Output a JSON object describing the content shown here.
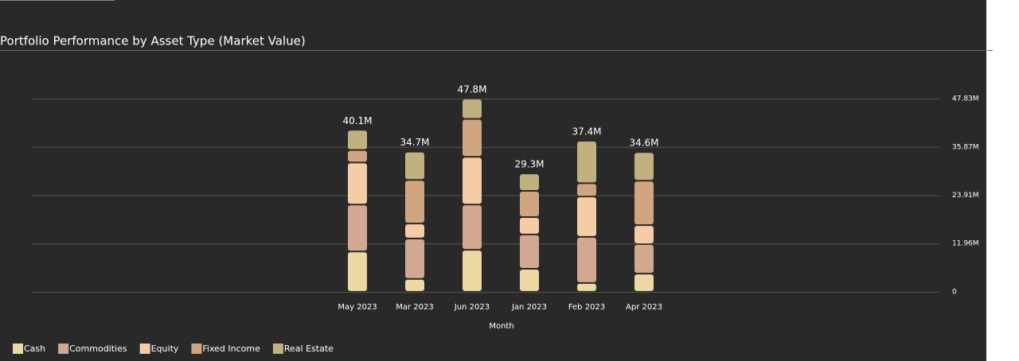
{
  "chart_data": {
    "type": "stacked-bar",
    "title": "Portfolio Performance by Asset Type (Market Value)",
    "x_label": "Month",
    "categories": [
      "May 2023",
      "Mar 2023",
      "Jun 2023",
      "Jan 2023",
      "Feb 2023",
      "Apr 2023"
    ],
    "series": [
      {
        "name": "Cash",
        "color": "#ebd8a3",
        "values": [
          10.0,
          3.2,
          10.4,
          5.7,
          2.2,
          4.5
        ]
      },
      {
        "name": "Commodities",
        "color": "#d2a891",
        "values": [
          11.6,
          10.0,
          11.2,
          8.5,
          11.4,
          7.3
        ]
      },
      {
        "name": "Equity",
        "color": "#f5cca6",
        "values": [
          10.4,
          3.7,
          11.8,
          4.3,
          10.0,
          4.7
        ]
      },
      {
        "name": "Fixed Income",
        "color": "#d0a57f",
        "values": [
          3.1,
          10.8,
          9.4,
          6.5,
          3.3,
          11.0
        ]
      },
      {
        "name": "Real Estate",
        "color": "#c1b17f",
        "values": [
          5.0,
          7.0,
          5.0,
          4.3,
          10.5,
          7.1
        ]
      }
    ],
    "totals": {
      "values": [
        40.1,
        34.7,
        47.8,
        29.3,
        37.4,
        34.6
      ],
      "value_labels": [
        "40.1M",
        "34.7M",
        "47.8M",
        "29.3M",
        "37.4M",
        "34.6M"
      ]
    },
    "ylim": [
      0,
      47.83
    ],
    "yticks": [
      0,
      {
        "value": 11.96,
        "label": "11.96M"
      },
      {
        "value": 23.91,
        "label": "23.91M"
      },
      {
        "value": 35.87,
        "label": "35.87M"
      },
      {
        "value": 47.83,
        "label": "47.83M"
      }
    ],
    "grid": true
  }
}
